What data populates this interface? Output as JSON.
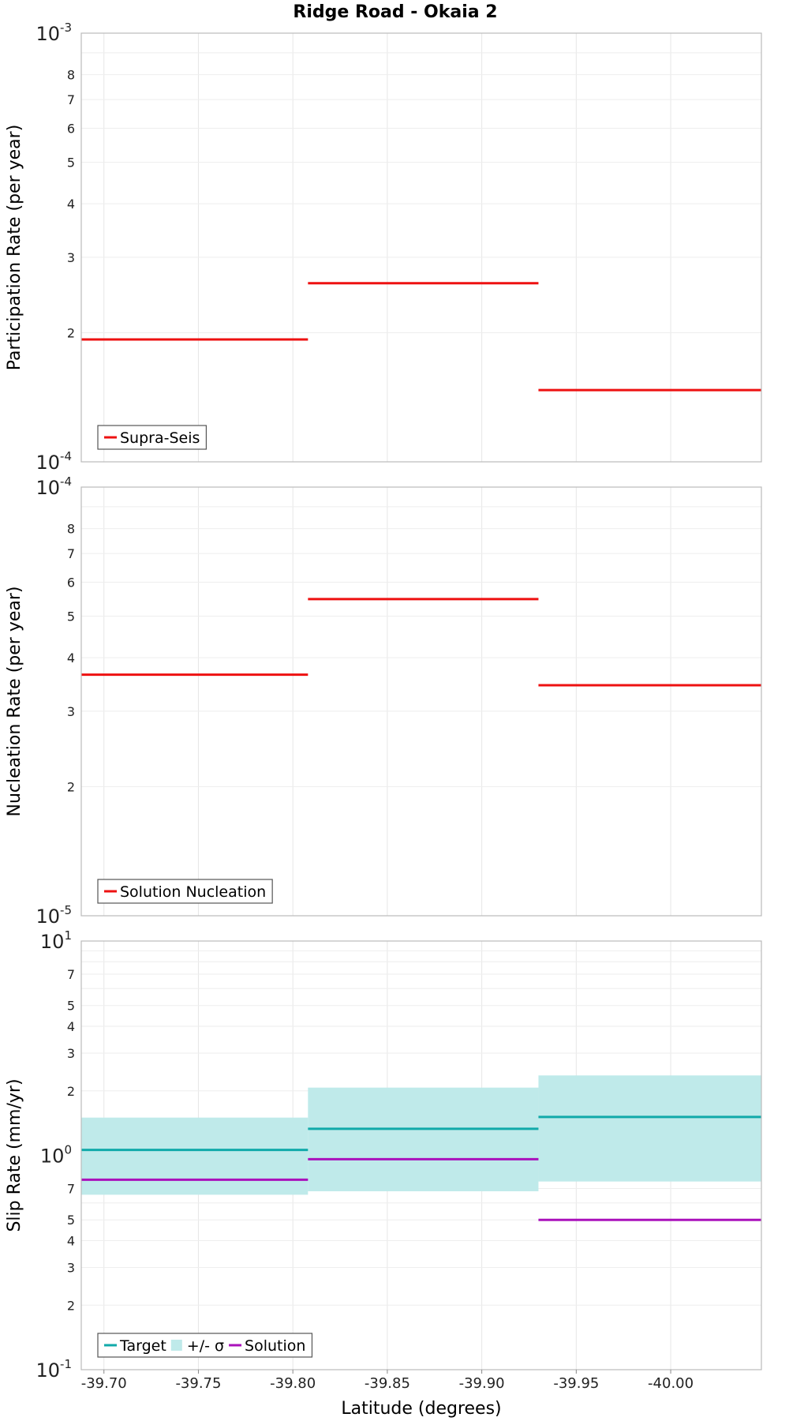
{
  "chart_data": {
    "type": "line",
    "title": "Ridge Road - Okaia 2",
    "xlabel": "Latitude (degrees)",
    "xlim": [
      -39.688,
      -40.048
    ],
    "x_ticks": [
      -39.7,
      -39.75,
      -39.8,
      -39.85,
      -39.9,
      -39.95,
      -40.0
    ],
    "x_tick_labels": [
      "-39.70",
      "-39.75",
      "-39.80",
      "-39.85",
      "-39.90",
      "-39.95",
      "-40.00"
    ],
    "grid": true,
    "panels": [
      {
        "ylabel": "Participation Rate (per year)",
        "yscale": "log",
        "ylim": [
          0.0001,
          0.001
        ],
        "decade_labels": [
          {
            "base": "10",
            "exp": "-4"
          },
          {
            "base": "10",
            "exp": "-3"
          }
        ],
        "minor_tick_labels": [
          "2",
          "3",
          "4",
          "5",
          "6",
          "7",
          "8"
        ],
        "series": [
          {
            "name": "Supra-Seis",
            "color": "#ee1111",
            "kind": "step",
            "segments": [
              {
                "x0": -39.688,
                "x1": -39.808,
                "y": 0.000193
              },
              {
                "x0": -39.808,
                "x1": -39.93,
                "y": 0.000261
              },
              {
                "x0": -39.93,
                "x1": -40.048,
                "y": 0.000147
              }
            ]
          }
        ],
        "legend": {
          "position": "bottom-left",
          "entries": [
            {
              "label": "Supra-Seis",
              "color": "#ee1111",
              "kind": "line"
            }
          ]
        }
      },
      {
        "ylabel": "Nucleation Rate (per year)",
        "yscale": "log",
        "ylim": [
          1e-05,
          0.0001
        ],
        "decade_labels": [
          {
            "base": "10",
            "exp": "-5"
          },
          {
            "base": "10",
            "exp": "-4"
          }
        ],
        "minor_tick_labels": [
          "2",
          "3",
          "4",
          "5",
          "6",
          "7",
          "8"
        ],
        "series": [
          {
            "name": "Solution Nucleation",
            "color": "#ee1111",
            "kind": "step",
            "segments": [
              {
                "x0": -39.688,
                "x1": -39.808,
                "y": 3.65e-05
              },
              {
                "x0": -39.808,
                "x1": -39.93,
                "y": 5.48e-05
              },
              {
                "x0": -39.93,
                "x1": -40.048,
                "y": 3.45e-05
              }
            ]
          }
        ],
        "legend": {
          "position": "bottom-left",
          "entries": [
            {
              "label": "Solution Nucleation",
              "color": "#ee1111",
              "kind": "line"
            }
          ]
        }
      },
      {
        "ylabel": "Slip Rate (mm/yr)",
        "yscale": "log",
        "ylim": [
          0.1,
          10
        ],
        "decade_labels": [
          {
            "base": "10",
            "exp": "-1"
          },
          {
            "base": "10",
            "exp": "0"
          },
          {
            "base": "10",
            "exp": "1"
          }
        ],
        "minor_tick_labels": [
          "2",
          "3",
          "4",
          "5",
          "7",
          "2",
          "3",
          "4",
          "5",
          "7"
        ],
        "series": [
          {
            "name": "+/- σ",
            "color": "#bfeaea",
            "kind": "band",
            "segments": [
              {
                "x0": -39.688,
                "x1": -39.808,
                "lo": 0.655,
                "hi": 1.5
              },
              {
                "x0": -39.808,
                "x1": -39.93,
                "lo": 0.68,
                "hi": 2.07
              },
              {
                "x0": -39.93,
                "x1": -40.048,
                "lo": 0.755,
                "hi": 2.36
              }
            ]
          },
          {
            "name": "Target",
            "color": "#11aaaa",
            "kind": "step",
            "segments": [
              {
                "x0": -39.688,
                "x1": -39.808,
                "y": 1.06
              },
              {
                "x0": -39.808,
                "x1": -39.93,
                "y": 1.33
              },
              {
                "x0": -39.93,
                "x1": -40.048,
                "y": 1.51
              }
            ]
          },
          {
            "name": "Solution",
            "color": "#aa11bb",
            "kind": "step",
            "segments": [
              {
                "x0": -39.688,
                "x1": -39.808,
                "y": 0.77
              },
              {
                "x0": -39.808,
                "x1": -39.93,
                "y": 0.96
              },
              {
                "x0": -39.93,
                "x1": -40.048,
                "y": 0.5
              }
            ]
          }
        ],
        "legend": {
          "position": "bottom-left",
          "entries": [
            {
              "label": "Target",
              "color": "#11aaaa",
              "kind": "line"
            },
            {
              "label": "+/- σ",
              "color": "#bfeaea",
              "kind": "patch"
            },
            {
              "label": "Solution",
              "color": "#aa11bb",
              "kind": "line"
            }
          ]
        }
      }
    ]
  }
}
